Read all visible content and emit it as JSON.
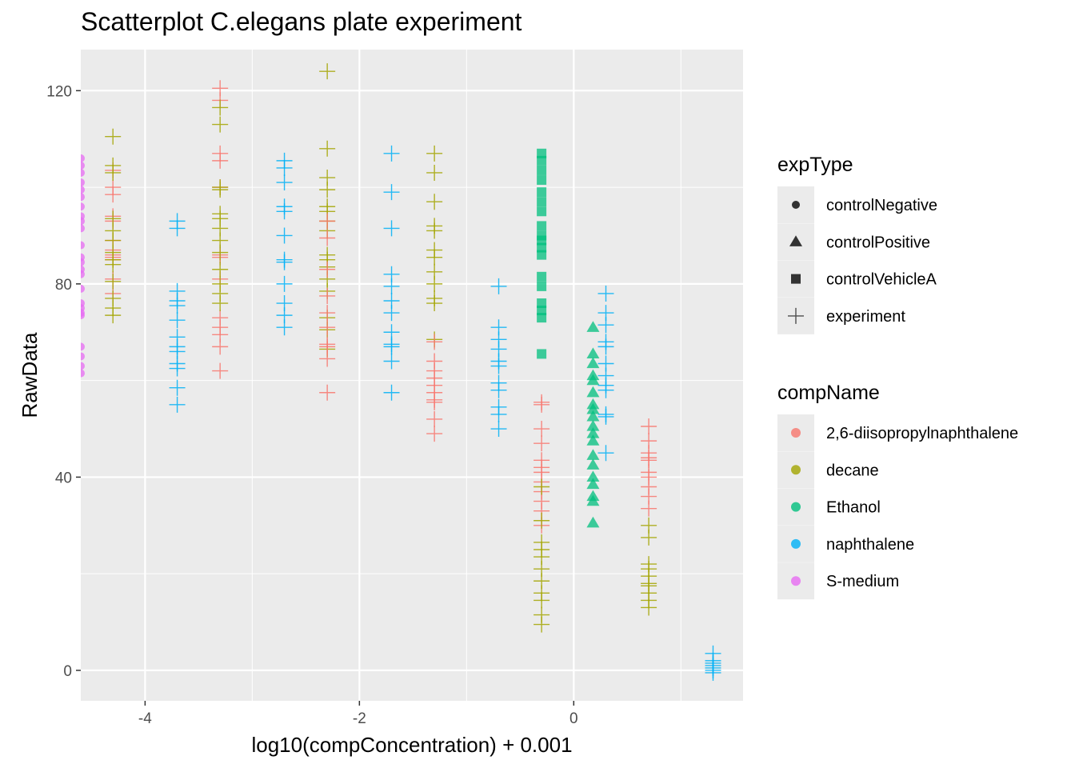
{
  "chart_data": {
    "type": "scatter",
    "title": "Scatterplot C.elegans plate experiment",
    "xlabel": "log10(compConcentration) + 0.001",
    "ylabel": "RawData",
    "xlim": [
      -4.6,
      1.58
    ],
    "ylim": [
      -6.3,
      128.5
    ],
    "x_ticks": [
      -4,
      -2,
      0
    ],
    "x_tick_labels": [
      "-4",
      "-2",
      "0"
    ],
    "x_minor_ticks": [
      -3,
      -1,
      1
    ],
    "y_ticks": [
      0,
      40,
      80,
      120
    ],
    "y_tick_labels": [
      "0",
      "40",
      "80",
      "120"
    ],
    "y_minor_ticks": [
      20,
      60,
      100
    ],
    "grid": true,
    "legend_position": "right",
    "legend_shape": {
      "title": "expType",
      "entries": [
        {
          "label": "controlNegative",
          "shape": "circle"
        },
        {
          "label": "controlPositive",
          "shape": "triangle"
        },
        {
          "label": "controlVehicleA",
          "shape": "square"
        },
        {
          "label": "experiment",
          "shape": "plus"
        }
      ]
    },
    "legend_color": {
      "title": "compName",
      "entries": [
        {
          "label": "2,6-diisopropylnaphthalene",
          "color": "#F8766D"
        },
        {
          "label": "decane",
          "color": "#A3A500"
        },
        {
          "label": "Ethanol",
          "color": "#00BF7D"
        },
        {
          "label": "naphthalene",
          "color": "#00B0F6"
        },
        {
          "label": "S-medium",
          "color": "#E76BF3"
        }
      ]
    },
    "series": [
      {
        "comp": "S-medium",
        "exp": "controlNegative",
        "x": -4.6,
        "y": [
          106,
          104.5,
          103,
          101,
          99.5,
          98,
          96,
          94,
          93,
          91.5,
          88,
          85.5,
          84.5,
          83,
          82,
          79,
          76,
          75,
          74,
          73.5,
          67,
          65,
          63,
          61.5
        ]
      },
      {
        "comp": "2,6-diisopropylnaphthalene",
        "exp": "experiment",
        "x": -4.3,
        "y": [
          103.5,
          100,
          98.5,
          94,
          93,
          89,
          87,
          86,
          85.5,
          85,
          81,
          78
        ]
      },
      {
        "comp": "decane",
        "exp": "experiment",
        "x": -4.3,
        "y": [
          110.5,
          104.5,
          103,
          93.5,
          91,
          89,
          86.5,
          85,
          84,
          80.5,
          77,
          75,
          73.5
        ]
      },
      {
        "comp": "naphthalene",
        "exp": "experiment",
        "x": -3.7,
        "y": [
          93,
          91.5,
          78.5,
          76.5,
          75.5,
          72.5,
          69,
          67,
          66,
          63.5,
          62.5,
          58.5,
          55
        ]
      },
      {
        "comp": "2,6-diisopropylnaphthalene",
        "exp": "experiment",
        "x": -3.3,
        "y": [
          120.5,
          118,
          107,
          105.5,
          100,
          86,
          85.5,
          81,
          73,
          71,
          69.5,
          67,
          62
        ]
      },
      {
        "comp": "decane",
        "exp": "experiment",
        "x": -3.3,
        "y": [
          116.5,
          113,
          100,
          99.5,
          94.5,
          93.5,
          91.5,
          89,
          86.5,
          83,
          80,
          78,
          76
        ]
      },
      {
        "comp": "naphthalene",
        "exp": "experiment",
        "x": -2.7,
        "y": [
          105.5,
          104,
          101,
          96,
          95,
          90,
          85,
          84.5,
          80,
          76,
          73.5,
          71
        ]
      },
      {
        "comp": "decane",
        "exp": "experiment",
        "x": -2.3,
        "y": [
          124,
          108,
          102,
          99.5,
          96,
          95,
          93,
          91,
          86,
          85,
          83.5,
          81,
          78.5,
          73,
          70.5,
          66.5
        ]
      },
      {
        "comp": "2,6-diisopropylnaphthalene",
        "exp": "experiment",
        "x": -2.3,
        "y": [
          93,
          89.5,
          83,
          77.5,
          74,
          71,
          67.5,
          67,
          64.5,
          57.5
        ]
      },
      {
        "comp": "naphthalene",
        "exp": "experiment",
        "x": -1.7,
        "y": [
          107,
          99,
          91.5,
          82,
          79.5,
          76.5,
          74,
          70,
          67.5,
          67,
          64,
          57.5
        ]
      },
      {
        "comp": "decane",
        "exp": "experiment",
        "x": -1.3,
        "y": [
          107,
          103,
          97,
          92,
          91,
          87,
          85.5,
          82.5,
          80,
          77,
          76,
          68.5
        ]
      },
      {
        "comp": "2,6-diisopropylnaphthalene",
        "exp": "experiment",
        "x": -1.3,
        "y": [
          68,
          64,
          62,
          60.5,
          59,
          57.5,
          56,
          55.5,
          52,
          49
        ]
      },
      {
        "comp": "naphthalene",
        "exp": "experiment",
        "x": -0.7,
        "y": [
          79.5,
          71,
          68.5,
          66.5,
          64,
          63,
          59.5,
          58,
          54.5,
          53,
          50
        ]
      },
      {
        "comp": "Ethanol",
        "exp": "controlVehicleA",
        "x": -0.3,
        "y": [
          107,
          105.5,
          103.5,
          101.5,
          99,
          97,
          95,
          92,
          90,
          89,
          87.5,
          86,
          81.5,
          79.5,
          76,
          74.5,
          73,
          65.5
        ]
      },
      {
        "comp": "2,6-diisopropylnaphthalene",
        "exp": "experiment",
        "x": -0.3,
        "y": [
          55.5,
          55,
          50,
          47,
          43.5,
          42,
          41,
          39,
          37,
          35,
          33,
          30
        ]
      },
      {
        "comp": "decane",
        "exp": "experiment",
        "x": -0.3,
        "y": [
          38,
          31,
          26.5,
          25,
          23.5,
          21,
          18.5,
          16,
          14.5,
          11.5,
          9.5
        ]
      },
      {
        "comp": "Ethanol",
        "exp": "controlPositive",
        "x": 0.18,
        "y": [
          71,
          65.5,
          63.5,
          61,
          60,
          57.5,
          55,
          54,
          52.5,
          50.5,
          49,
          47.5,
          44.5,
          42.5,
          40,
          38.5,
          36,
          35,
          30.5
        ]
      },
      {
        "comp": "naphthalene",
        "exp": "experiment",
        "x": 0.3,
        "y": [
          78,
          74,
          71.5,
          68,
          67,
          63.5,
          61,
          59,
          58,
          53,
          52.5,
          45
        ]
      },
      {
        "comp": "2,6-diisopropylnaphthalene",
        "exp": "experiment",
        "x": 0.7,
        "y": [
          50.5,
          47.5,
          45,
          44,
          43.5,
          41,
          40,
          38,
          36,
          33.5
        ]
      },
      {
        "comp": "decane",
        "exp": "experiment",
        "x": 0.7,
        "y": [
          30,
          27.5,
          22,
          21,
          19.5,
          18,
          17.5,
          16,
          14.5,
          13
        ]
      },
      {
        "comp": "naphthalene",
        "exp": "experiment",
        "x": 1.3,
        "y": [
          3.5,
          2,
          1.5,
          1,
          0.5,
          0,
          -0.5
        ]
      }
    ]
  }
}
